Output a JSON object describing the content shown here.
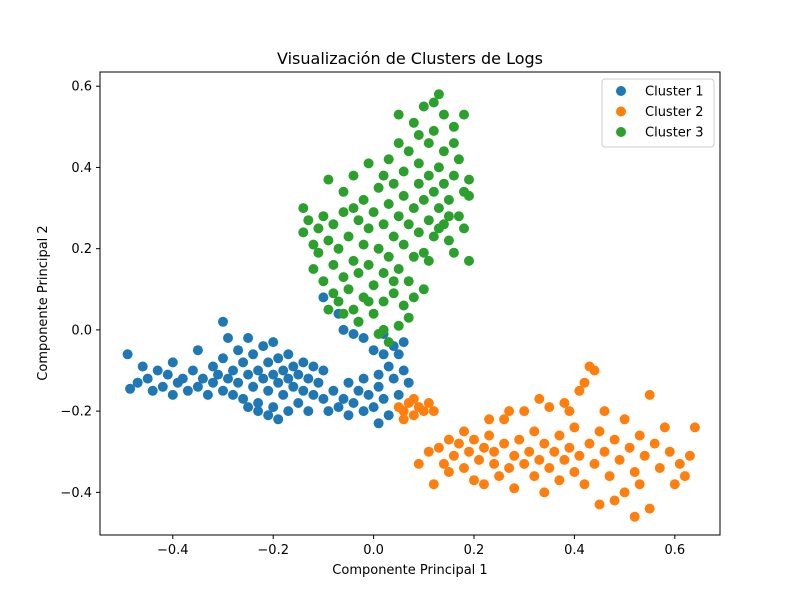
{
  "chart_data": {
    "type": "scatter",
    "title": "Visualización de Clusters de Logs",
    "xlabel": "Componente Principal 1",
    "ylabel": "Componente Principal 2",
    "xlim": [
      -0.545,
      0.69
    ],
    "ylim": [
      -0.505,
      0.635
    ],
    "xticks": [
      -0.4,
      -0.2,
      0.0,
      0.2,
      0.4,
      0.6
    ],
    "xtick_labels": [
      "−0.4",
      "−0.2",
      "0.0",
      "0.2",
      "0.4",
      "0.6"
    ],
    "yticks": [
      -0.4,
      -0.2,
      0.0,
      0.2,
      0.4,
      0.6
    ],
    "ytick_labels": [
      "−0.4",
      "−0.2",
      "0.0",
      "0.2",
      "0.4",
      "0.6"
    ],
    "grid": false,
    "legend_position": "top-right",
    "series": [
      {
        "name": "Cluster 1",
        "color": "#1f77b4",
        "points": [
          [
            -0.49,
            -0.06
          ],
          [
            -0.485,
            -0.145
          ],
          [
            -0.47,
            -0.13
          ],
          [
            -0.46,
            -0.09
          ],
          [
            -0.45,
            -0.12
          ],
          [
            -0.44,
            -0.15
          ],
          [
            -0.43,
            -0.1
          ],
          [
            -0.42,
            -0.14
          ],
          [
            -0.41,
            -0.11
          ],
          [
            -0.4,
            -0.16
          ],
          [
            -0.4,
            -0.08
          ],
          [
            -0.39,
            -0.13
          ],
          [
            -0.38,
            -0.12
          ],
          [
            -0.37,
            -0.15
          ],
          [
            -0.36,
            -0.1
          ],
          [
            -0.35,
            -0.14
          ],
          [
            -0.35,
            -0.05
          ],
          [
            -0.34,
            -0.12
          ],
          [
            -0.33,
            -0.16
          ],
          [
            -0.32,
            -0.09
          ],
          [
            -0.32,
            -0.13
          ],
          [
            -0.31,
            -0.11
          ],
          [
            -0.3,
            -0.15
          ],
          [
            -0.3,
            -0.07
          ],
          [
            -0.3,
            0.02
          ],
          [
            -0.29,
            -0.02
          ],
          [
            -0.29,
            -0.12
          ],
          [
            -0.28,
            -0.1
          ],
          [
            -0.28,
            -0.16
          ],
          [
            -0.27,
            -0.05
          ],
          [
            -0.27,
            -0.13
          ],
          [
            -0.26,
            -0.08
          ],
          [
            -0.26,
            -0.17
          ],
          [
            -0.25,
            -0.11
          ],
          [
            -0.25,
            -0.02
          ],
          [
            -0.24,
            -0.14
          ],
          [
            -0.24,
            -0.06
          ],
          [
            -0.23,
            -0.1
          ],
          [
            -0.23,
            -0.18
          ],
          [
            -0.22,
            -0.12
          ],
          [
            -0.22,
            -0.04
          ],
          [
            -0.21,
            -0.15
          ],
          [
            -0.21,
            -0.08
          ],
          [
            -0.2,
            -0.11
          ],
          [
            -0.2,
            -0.19
          ],
          [
            -0.2,
            -0.03
          ],
          [
            -0.19,
            -0.13
          ],
          [
            -0.19,
            -0.07
          ],
          [
            -0.18,
            -0.16
          ],
          [
            -0.18,
            -0.1
          ],
          [
            -0.17,
            -0.2
          ],
          [
            -0.17,
            -0.12
          ],
          [
            -0.17,
            -0.06
          ],
          [
            -0.16,
            -0.14
          ],
          [
            -0.16,
            -0.09
          ],
          [
            -0.15,
            -0.18
          ],
          [
            -0.15,
            -0.11
          ],
          [
            -0.14,
            -0.15
          ],
          [
            -0.14,
            -0.08
          ],
          [
            -0.13,
            -0.12
          ],
          [
            -0.13,
            -0.2
          ],
          [
            -0.12,
            -0.16
          ],
          [
            -0.11,
            -0.13
          ],
          [
            -0.1,
            -0.17
          ],
          [
            -0.1,
            -0.1
          ],
          [
            -0.12,
            -0.09
          ],
          [
            -0.19,
            -0.22
          ],
          [
            -0.21,
            -0.21
          ],
          [
            -0.23,
            -0.2
          ],
          [
            -0.25,
            -0.19
          ],
          [
            -0.09,
            -0.2
          ],
          [
            -0.08,
            -0.15
          ],
          [
            -0.07,
            -0.19
          ],
          [
            -0.06,
            -0.17
          ],
          [
            -0.05,
            -0.21
          ],
          [
            -0.05,
            -0.13
          ],
          [
            -0.04,
            -0.18
          ],
          [
            -0.03,
            -0.15
          ],
          [
            -0.02,
            -0.2
          ],
          [
            -0.02,
            -0.12
          ],
          [
            -0.01,
            -0.16
          ],
          [
            0.0,
            -0.19
          ],
          [
            0.01,
            -0.14
          ],
          [
            0.02,
            -0.17
          ],
          [
            0.03,
            -0.21
          ],
          [
            0.03,
            -0.09
          ],
          [
            0.04,
            -0.12
          ],
          [
            0.05,
            -0.06
          ],
          [
            0.05,
            -0.16
          ],
          [
            0.06,
            -0.03
          ],
          [
            0.06,
            -0.1
          ],
          [
            0.07,
            -0.13
          ],
          [
            0.04,
            -0.04
          ],
          [
            0.02,
            -0.06
          ],
          [
            0.0,
            -0.05
          ],
          [
            -0.02,
            -0.02
          ],
          [
            -0.04,
            -0.01
          ],
          [
            0.01,
            -0.23
          ],
          [
            0.02,
            -0.01
          ],
          [
            -0.06,
            0.0
          ],
          [
            -0.07,
            0.04
          ],
          [
            -0.1,
            0.08
          ],
          [
            -0.03,
            0.02
          ],
          [
            0.01,
            -0.11
          ]
        ]
      },
      {
        "name": "Cluster 2",
        "color": "#ff7f0e",
        "points": [
          [
            0.05,
            -0.19
          ],
          [
            0.06,
            -0.2
          ],
          [
            0.07,
            -0.18
          ],
          [
            0.08,
            -0.21
          ],
          [
            0.09,
            -0.19
          ],
          [
            0.1,
            -0.2
          ],
          [
            0.11,
            -0.18
          ],
          [
            0.12,
            -0.2
          ],
          [
            0.08,
            -0.17
          ],
          [
            0.06,
            -0.22
          ],
          [
            0.09,
            -0.33
          ],
          [
            0.11,
            -0.3
          ],
          [
            0.12,
            -0.38
          ],
          [
            0.13,
            -0.29
          ],
          [
            0.14,
            -0.33
          ],
          [
            0.15,
            -0.27
          ],
          [
            0.15,
            -0.35
          ],
          [
            0.16,
            -0.31
          ],
          [
            0.17,
            -0.28
          ],
          [
            0.18,
            -0.34
          ],
          [
            0.18,
            -0.25
          ],
          [
            0.19,
            -0.3
          ],
          [
            0.2,
            -0.37
          ],
          [
            0.2,
            -0.27
          ],
          [
            0.21,
            -0.32
          ],
          [
            0.22,
            -0.29
          ],
          [
            0.22,
            -0.38
          ],
          [
            0.23,
            -0.26
          ],
          [
            0.24,
            -0.33
          ],
          [
            0.24,
            -0.3
          ],
          [
            0.25,
            -0.36
          ],
          [
            0.26,
            -0.28
          ],
          [
            0.26,
            -0.22
          ],
          [
            0.27,
            -0.34
          ],
          [
            0.28,
            -0.31
          ],
          [
            0.28,
            -0.39
          ],
          [
            0.29,
            -0.27
          ],
          [
            0.3,
            -0.33
          ],
          [
            0.3,
            -0.2
          ],
          [
            0.31,
            -0.3
          ],
          [
            0.32,
            -0.36
          ],
          [
            0.32,
            -0.25
          ],
          [
            0.33,
            -0.32
          ],
          [
            0.34,
            -0.28
          ],
          [
            0.34,
            -0.4
          ],
          [
            0.35,
            -0.19
          ],
          [
            0.35,
            -0.34
          ],
          [
            0.36,
            -0.3
          ],
          [
            0.37,
            -0.26
          ],
          [
            0.37,
            -0.37
          ],
          [
            0.38,
            -0.32
          ],
          [
            0.38,
            -0.18
          ],
          [
            0.39,
            -0.29
          ],
          [
            0.4,
            -0.35
          ],
          [
            0.4,
            -0.24
          ],
          [
            0.41,
            -0.31
          ],
          [
            0.42,
            -0.38
          ],
          [
            0.42,
            -0.13
          ],
          [
            0.43,
            -0.28
          ],
          [
            0.44,
            -0.33
          ],
          [
            0.44,
            -0.1
          ],
          [
            0.45,
            -0.25
          ],
          [
            0.45,
            -0.43
          ],
          [
            0.46,
            -0.3
          ],
          [
            0.47,
            -0.36
          ],
          [
            0.48,
            -0.27
          ],
          [
            0.49,
            -0.32
          ],
          [
            0.5,
            -0.22
          ],
          [
            0.5,
            -0.4
          ],
          [
            0.51,
            -0.29
          ],
          [
            0.52,
            -0.35
          ],
          [
            0.53,
            -0.26
          ],
          [
            0.54,
            -0.31
          ],
          [
            0.55,
            -0.44
          ],
          [
            0.55,
            -0.16
          ],
          [
            0.56,
            -0.28
          ],
          [
            0.57,
            -0.34
          ],
          [
            0.58,
            -0.24
          ],
          [
            0.59,
            -0.3
          ],
          [
            0.6,
            -0.38
          ],
          [
            0.61,
            -0.33
          ],
          [
            0.62,
            -0.36
          ],
          [
            0.63,
            -0.31
          ],
          [
            0.64,
            -0.24
          ],
          [
            0.52,
            -0.46
          ],
          [
            0.48,
            -0.42
          ],
          [
            0.41,
            -0.15
          ],
          [
            0.39,
            -0.2
          ],
          [
            0.33,
            -0.17
          ],
          [
            0.27,
            -0.2
          ],
          [
            0.23,
            -0.22
          ],
          [
            0.43,
            -0.09
          ],
          [
            0.46,
            -0.2
          ],
          [
            0.53,
            -0.38
          ]
        ]
      },
      {
        "name": "Cluster 3",
        "color": "#2ca02c",
        "points": [
          [
            -0.14,
            0.3
          ],
          [
            -0.14,
            0.24
          ],
          [
            -0.13,
            0.27
          ],
          [
            -0.12,
            0.21
          ],
          [
            -0.12,
            0.15
          ],
          [
            -0.11,
            0.25
          ],
          [
            -0.11,
            0.19
          ],
          [
            -0.1,
            0.12
          ],
          [
            -0.1,
            0.28
          ],
          [
            -0.09,
            0.37
          ],
          [
            -0.09,
            0.22
          ],
          [
            -0.08,
            0.09
          ],
          [
            -0.08,
            0.26
          ],
          [
            -0.08,
            0.16
          ],
          [
            -0.07,
            0.07
          ],
          [
            -0.07,
            0.2
          ],
          [
            -0.06,
            0.29
          ],
          [
            -0.06,
            0.13
          ],
          [
            -0.06,
            0.34
          ],
          [
            -0.05,
            0.23
          ],
          [
            -0.05,
            0.1
          ],
          [
            -0.04,
            0.17
          ],
          [
            -0.04,
            0.05
          ],
          [
            -0.04,
            0.38
          ],
          [
            -0.03,
            0.27
          ],
          [
            -0.03,
            0.14
          ],
          [
            -0.03,
            0.02
          ],
          [
            -0.02,
            0.21
          ],
          [
            -0.02,
            0.32
          ],
          [
            -0.02,
            0.08
          ],
          [
            -0.01,
            0.16
          ],
          [
            -0.01,
            0.25
          ],
          [
            -0.01,
            0.41
          ],
          [
            0.0,
            0.11
          ],
          [
            0.0,
            0.29
          ],
          [
            0.0,
            0.04
          ],
          [
            0.01,
            0.2
          ],
          [
            0.01,
            0.35
          ],
          [
            0.01,
            -0.01
          ],
          [
            0.02,
            0.14
          ],
          [
            0.02,
            0.26
          ],
          [
            0.02,
            0.07
          ],
          [
            0.03,
            0.31
          ],
          [
            0.03,
            0.18
          ],
          [
            0.03,
            0.42
          ],
          [
            0.04,
            0.23
          ],
          [
            0.04,
            0.09
          ],
          [
            0.04,
            0.36
          ],
          [
            0.05,
            0.28
          ],
          [
            0.05,
            0.15
          ],
          [
            0.05,
            0.46
          ],
          [
            0.06,
            0.33
          ],
          [
            0.06,
            0.21
          ],
          [
            0.06,
            0.39
          ],
          [
            0.07,
            0.26
          ],
          [
            0.07,
            0.12
          ],
          [
            0.07,
            0.44
          ],
          [
            0.08,
            0.3
          ],
          [
            0.08,
            0.18
          ],
          [
            0.08,
            0.51
          ],
          [
            0.09,
            0.36
          ],
          [
            0.09,
            0.24
          ],
          [
            0.09,
            0.41
          ],
          [
            0.1,
            0.32
          ],
          [
            0.1,
            0.19
          ],
          [
            0.1,
            0.55
          ],
          [
            0.11,
            0.38
          ],
          [
            0.11,
            0.27
          ],
          [
            0.11,
            0.46
          ],
          [
            0.12,
            0.34
          ],
          [
            0.12,
            0.23
          ],
          [
            0.12,
            0.49
          ],
          [
            0.13,
            0.4
          ],
          [
            0.13,
            0.3
          ],
          [
            0.13,
            0.58
          ],
          [
            0.14,
            0.36
          ],
          [
            0.14,
            0.26
          ],
          [
            0.14,
            0.44
          ],
          [
            0.15,
            0.32
          ],
          [
            0.15,
            0.22
          ],
          [
            0.16,
            0.38
          ],
          [
            0.16,
            0.5
          ],
          [
            0.17,
            0.28
          ],
          [
            0.17,
            0.42
          ],
          [
            0.18,
            0.34
          ],
          [
            0.18,
            0.53
          ],
          [
            0.19,
            0.17
          ],
          [
            0.19,
            0.33
          ],
          [
            0.18,
            0.25
          ],
          [
            0.16,
            0.19
          ],
          [
            0.05,
            0.53
          ],
          [
            0.09,
            0.48
          ],
          [
            0.12,
            0.56
          ],
          [
            0.14,
            0.53
          ],
          [
            0.11,
            0.17
          ],
          [
            0.06,
            0.06
          ],
          [
            0.08,
            0.08
          ],
          [
            0.07,
            0.03
          ],
          [
            0.05,
            0.01
          ],
          [
            0.03,
            -0.03
          ],
          [
            0.02,
            0.0
          ],
          [
            -0.09,
            0.05
          ],
          [
            -0.06,
            0.04
          ],
          [
            0.15,
            0.28
          ],
          [
            0.16,
            0.46
          ],
          [
            0.19,
            0.37
          ],
          [
            0.13,
            0.25
          ],
          [
            0.1,
            0.1
          ],
          [
            0.04,
            0.12
          ],
          [
            -0.01,
            0.07
          ],
          [
            -0.04,
            0.3
          ],
          [
            0.02,
            0.38
          ]
        ]
      }
    ]
  }
}
